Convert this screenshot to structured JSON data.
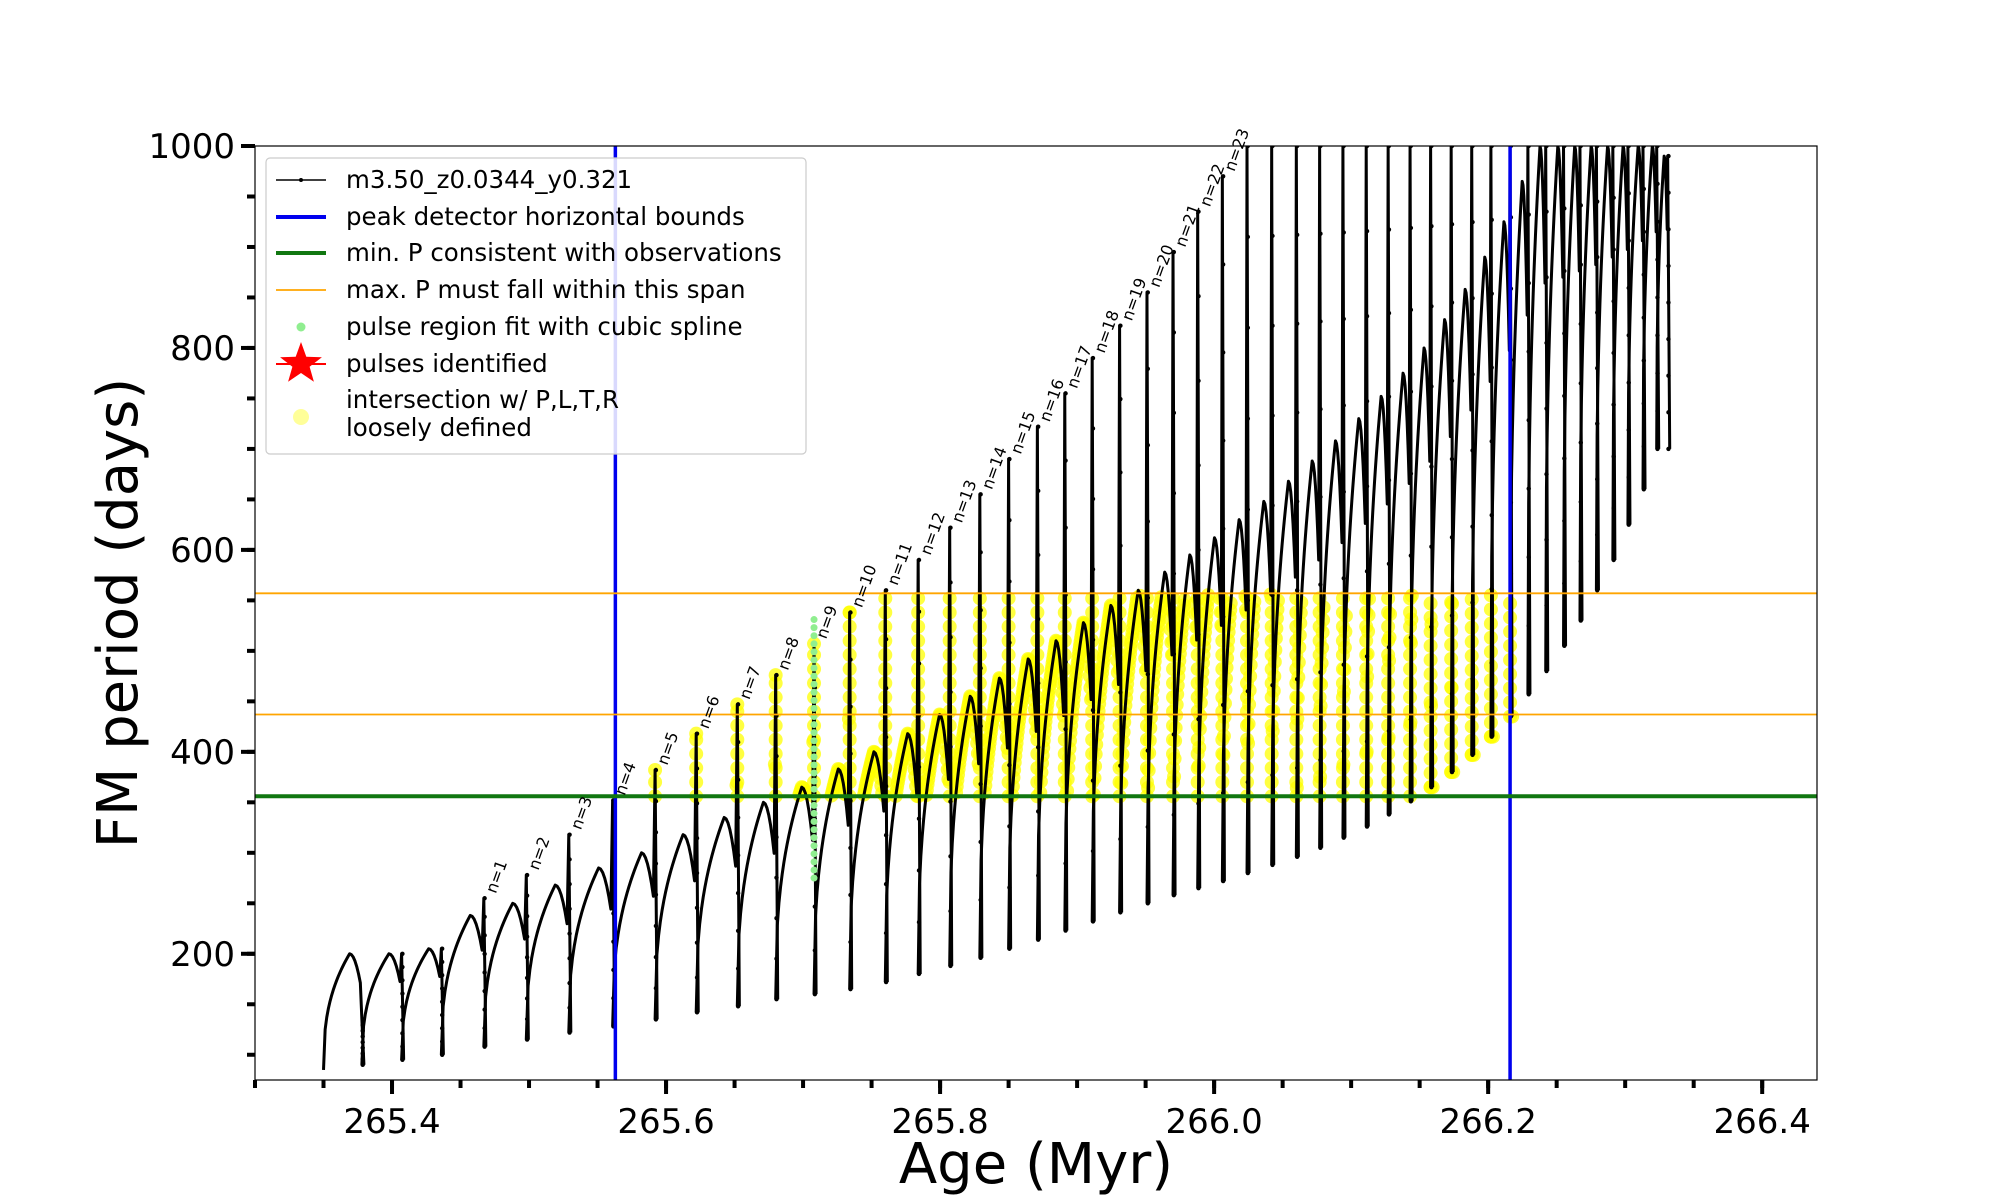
{
  "chart_data": {
    "type": "line",
    "xlabel": "Age (Myr)",
    "ylabel": "FM period (days)",
    "xlim": [
      265.3,
      266.44
    ],
    "ylim": [
      75,
      1000
    ],
    "x_ticks": [
      265.4,
      265.6,
      265.8,
      266.0,
      266.2,
      266.4
    ],
    "x_tick_labels": [
      "265.4",
      "265.6",
      "265.8",
      "266.0",
      "266.2",
      "266.4"
    ],
    "x_minor_step": 0.05,
    "y_ticks": [
      200,
      400,
      600,
      800,
      1000
    ],
    "y_tick_labels": [
      "200",
      "400",
      "600",
      "800",
      "1000"
    ],
    "y_minor_step": 50,
    "grid": false,
    "legend_position": "upper-left",
    "legend": [
      {
        "label": "m3.50_z0.0344_y0.321",
        "marker": "line-dots",
        "color": "#000000"
      },
      {
        "label": "peak detector horizontal bounds",
        "marker": "line",
        "color": "#0000ee"
      },
      {
        "label": "min. P consistent with observations",
        "marker": "line",
        "color": "#117711"
      },
      {
        "label": "max. P must fall within this span",
        "marker": "thin-line",
        "color": "#ffa500"
      },
      {
        "label": "pulse region fit with cubic spline",
        "marker": "dot",
        "color": "#90ee90"
      },
      {
        "label": "pulses identified",
        "marker": "star",
        "color": "#ff0000"
      },
      {
        "label": "intersection w/ P,L,T,R",
        "label2": "loosely defined",
        "marker": "circle",
        "color": "#ffff99"
      }
    ],
    "colors": {
      "track": "#000000",
      "bounds": "#0000ee",
      "min_p": "#117711",
      "max_p_span": "#ffa500",
      "spline": "#90ee90",
      "intersection": "#ffff00"
    },
    "vertical_bounds": [
      265.563,
      266.216
    ],
    "min_period": 356,
    "max_period_span": [
      437,
      557
    ],
    "pulse_labels": [
      "n=1",
      "n=2",
      "n=3",
      "n=4",
      "n=5",
      "n=6",
      "n=7",
      "n=8",
      "n=9",
      "n=10",
      "n=11",
      "n=12",
      "n=13",
      "n=14",
      "n=15",
      "n=16",
      "n=17",
      "n=18",
      "n=19",
      "n=20",
      "n=21",
      "n=22",
      "n=23"
    ],
    "cycles": [
      {
        "x0": 265.35,
        "pmin": 85,
        "peak": 200,
        "spike": 135,
        "xs": 265.378
      },
      {
        "x0": 265.378,
        "pmin": 90,
        "peak": 200,
        "spike": 200,
        "xs": 265.407
      },
      {
        "x0": 265.407,
        "pmin": 95,
        "peak": 205,
        "spike": 205,
        "xs": 265.436
      },
      {
        "x0": 265.436,
        "pmin": 100,
        "peak": 238,
        "spike": 255,
        "xs": 265.467
      },
      {
        "x0": 265.467,
        "pmin": 108,
        "peak": 250,
        "spike": 278,
        "xs": 265.498
      },
      {
        "x0": 265.498,
        "pmin": 115,
        "peak": 268,
        "spike": 318,
        "xs": 265.529
      },
      {
        "x0": 265.529,
        "pmin": 122,
        "peak": 285,
        "spike": 352,
        "xs": 265.561
      },
      {
        "x0": 265.561,
        "pmin": 128,
        "peak": 300,
        "spike": 382,
        "xs": 265.592
      },
      {
        "x0": 265.592,
        "pmin": 135,
        "peak": 318,
        "spike": 418,
        "xs": 265.622
      },
      {
        "x0": 265.622,
        "pmin": 142,
        "peak": 335,
        "spike": 447,
        "xs": 265.652
      },
      {
        "x0": 265.652,
        "pmin": 148,
        "peak": 350,
        "spike": 476,
        "xs": 265.68
      },
      {
        "x0": 265.68,
        "pmin": 155,
        "peak": 365,
        "spike": 507,
        "xs": 265.708
      },
      {
        "x0": 265.708,
        "pmin": 160,
        "peak": 383,
        "spike": 538,
        "xs": 265.734
      },
      {
        "x0": 265.734,
        "pmin": 165,
        "peak": 400,
        "spike": 560,
        "xs": 265.76
      },
      {
        "x0": 265.76,
        "pmin": 172,
        "peak": 418,
        "spike": 590,
        "xs": 265.784
      },
      {
        "x0": 265.784,
        "pmin": 180,
        "peak": 437,
        "spike": 622,
        "xs": 265.807
      },
      {
        "x0": 265.807,
        "pmin": 188,
        "peak": 455,
        "spike": 655,
        "xs": 265.829
      },
      {
        "x0": 265.829,
        "pmin": 196,
        "peak": 473,
        "spike": 690,
        "xs": 265.85
      },
      {
        "x0": 265.85,
        "pmin": 205,
        "peak": 492,
        "spike": 722,
        "xs": 265.871
      },
      {
        "x0": 265.871,
        "pmin": 214,
        "peak": 510,
        "spike": 755,
        "xs": 265.891
      },
      {
        "x0": 265.891,
        "pmin": 223,
        "peak": 528,
        "spike": 790,
        "xs": 265.911
      },
      {
        "x0": 265.911,
        "pmin": 232,
        "peak": 545,
        "spike": 822,
        "xs": 265.931
      },
      {
        "x0": 265.931,
        "pmin": 241,
        "peak": 560,
        "spike": 855,
        "xs": 265.951
      },
      {
        "x0": 265.951,
        "pmin": 250,
        "peak": 578,
        "spike": 895,
        "xs": 265.97
      },
      {
        "x0": 265.97,
        "pmin": 258,
        "peak": 595,
        "spike": 935,
        "xs": 265.988
      },
      {
        "x0": 265.988,
        "pmin": 265,
        "peak": 612,
        "spike": 970,
        "xs": 266.006
      },
      {
        "x0": 266.006,
        "pmin": 272,
        "peak": 630,
        "spike": 1000,
        "xs": 266.024
      },
      {
        "x0": 266.024,
        "pmin": 280,
        "peak": 648,
        "spike": 1000,
        "xs": 266.042
      },
      {
        "x0": 266.042,
        "pmin": 288,
        "peak": 668,
        "spike": 1000,
        "xs": 266.06
      },
      {
        "x0": 266.06,
        "pmin": 296,
        "peak": 688,
        "spike": 1000,
        "xs": 266.077
      },
      {
        "x0": 266.077,
        "pmin": 305,
        "peak": 708,
        "spike": 1000,
        "xs": 266.094
      },
      {
        "x0": 266.094,
        "pmin": 315,
        "peak": 730,
        "spike": 1000,
        "xs": 266.111
      },
      {
        "x0": 266.111,
        "pmin": 326,
        "peak": 752,
        "spike": 1000,
        "xs": 266.127
      },
      {
        "x0": 266.127,
        "pmin": 338,
        "peak": 775,
        "spike": 1000,
        "xs": 266.143
      },
      {
        "x0": 266.143,
        "pmin": 351,
        "peak": 800,
        "spike": 1000,
        "xs": 266.158
      },
      {
        "x0": 266.158,
        "pmin": 365,
        "peak": 828,
        "spike": 1000,
        "xs": 266.173
      },
      {
        "x0": 266.173,
        "pmin": 380,
        "peak": 858,
        "spike": 1000,
        "xs": 266.188
      },
      {
        "x0": 266.188,
        "pmin": 397,
        "peak": 890,
        "spike": 1000,
        "xs": 266.202
      },
      {
        "x0": 266.202,
        "pmin": 415,
        "peak": 925,
        "spike": 1000,
        "xs": 266.216
      },
      {
        "x0": 266.216,
        "pmin": 435,
        "peak": 965,
        "spike": 1000,
        "xs": 266.229
      },
      {
        "x0": 266.229,
        "pmin": 457,
        "peak": 1000,
        "spike": 1000,
        "xs": 266.242
      },
      {
        "x0": 266.242,
        "pmin": 480,
        "peak": 1000,
        "spike": 1000,
        "xs": 266.255
      },
      {
        "x0": 266.255,
        "pmin": 505,
        "peak": 1000,
        "spike": 1000,
        "xs": 266.267
      },
      {
        "x0": 266.267,
        "pmin": 530,
        "peak": 1000,
        "spike": 1000,
        "xs": 266.279
      },
      {
        "x0": 266.279,
        "pmin": 560,
        "peak": 1000,
        "spike": 1000,
        "xs": 266.291
      },
      {
        "x0": 266.291,
        "pmin": 590,
        "peak": 1000,
        "spike": 1000,
        "xs": 266.302
      },
      {
        "x0": 266.302,
        "pmin": 625,
        "peak": 1000,
        "spike": 1000,
        "xs": 266.313
      },
      {
        "x0": 266.313,
        "pmin": 660,
        "peak": 1000,
        "spike": 1000,
        "xs": 266.323
      },
      {
        "x0": 266.323,
        "pmin": 700,
        "peak": 990,
        "spike": 990,
        "xs": 266.331
      }
    ],
    "spline_segment": {
      "x": 265.708,
      "y_range": [
        275,
        535
      ]
    }
  }
}
